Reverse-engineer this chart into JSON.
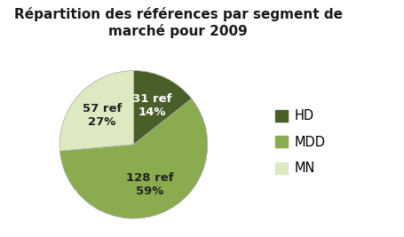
{
  "title": "Répartition des références par segment de\nmarché pour 2009",
  "segments": [
    "HD",
    "MDD",
    "MN"
  ],
  "values": [
    31,
    128,
    57
  ],
  "percentages": [
    14,
    59,
    27
  ],
  "refs": [
    31,
    128,
    57
  ],
  "colors": [
    "#4a5e2a",
    "#8aac4e",
    "#dde9c0"
  ],
  "legend_labels": [
    "HD",
    "MDD",
    "MN"
  ],
  "background_color": "#ffffff",
  "title_fontsize": 11,
  "label_fontsize": 9.5
}
